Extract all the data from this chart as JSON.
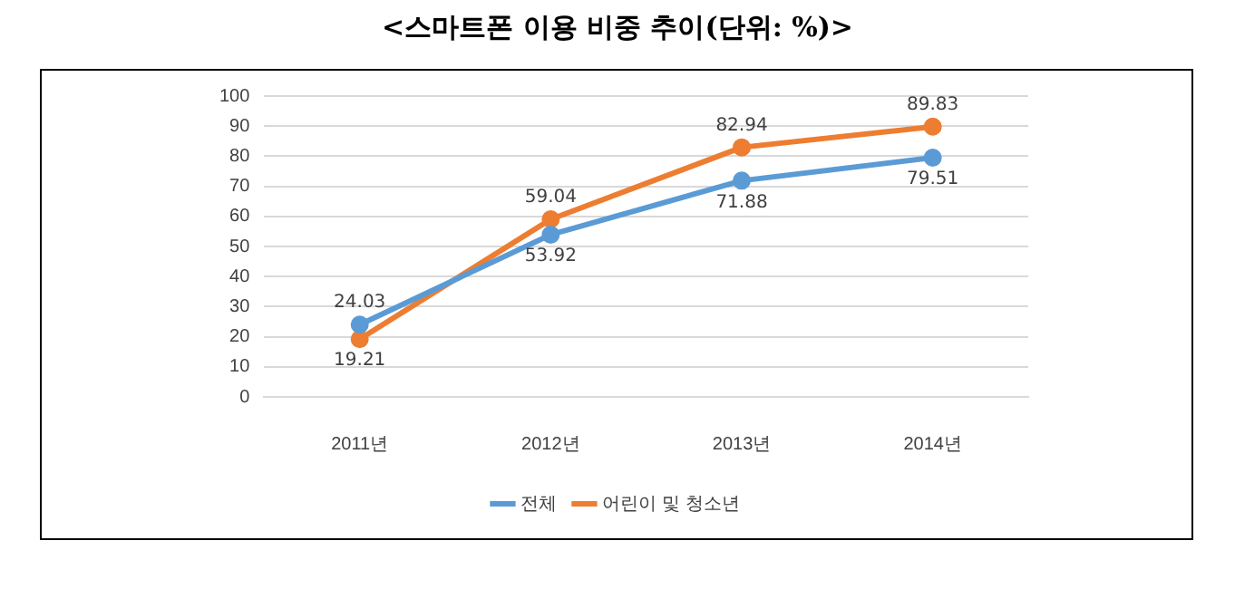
{
  "chart_data": {
    "type": "line",
    "title": "<스마트폰 이용 비중 추이(단위: %)>",
    "categories": [
      "2011년",
      "2012년",
      "2013년",
      "2014년"
    ],
    "series": [
      {
        "name": "전체",
        "color": "#5b9bd5",
        "values": [
          24.03,
          53.92,
          71.88,
          79.51
        ]
      },
      {
        "name": "어린이 및 청소년",
        "color": "#ed7d31",
        "values": [
          19.21,
          59.04,
          82.94,
          89.83
        ]
      }
    ],
    "ylim": [
      0,
      100
    ],
    "yticks": [
      0,
      10,
      20,
      30,
      40,
      50,
      60,
      70,
      80,
      90,
      100
    ],
    "grid": "y",
    "legend": "bottom",
    "marker": "circle",
    "line_style": "solid",
    "data_labels": true
  }
}
